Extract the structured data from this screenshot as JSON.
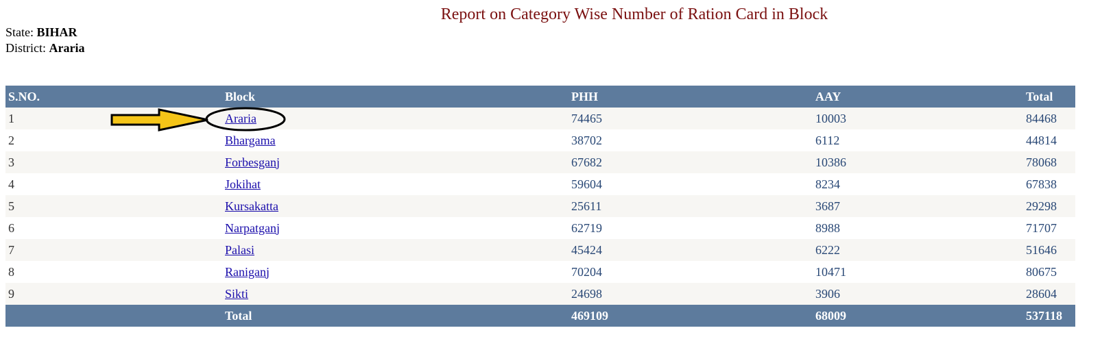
{
  "header": {
    "title": "Report on Category Wise Number of Ration Card in Block",
    "state_label": "State:",
    "state": "BIHAR",
    "district_label": "District:",
    "district": "Araria"
  },
  "table": {
    "columns": [
      "S.NO.",
      "Block",
      "PHH",
      "AAY",
      "Total"
    ],
    "rows": [
      [
        1,
        "Araria",
        74465,
        10003,
        84468
      ],
      [
        2,
        "Bhargama",
        38702,
        6112,
        44814
      ],
      [
        3,
        "Forbesganj",
        67682,
        10386,
        78068
      ],
      [
        4,
        "Jokihat",
        59604,
        8234,
        67838
      ],
      [
        5,
        "Kursakatta",
        25611,
        3687,
        29298
      ],
      [
        6,
        "Narpatganj",
        62719,
        8988,
        71707
      ],
      [
        7,
        "Palasi",
        45424,
        6222,
        51646
      ],
      [
        8,
        "Raniganj",
        70204,
        10471,
        80675
      ],
      [
        9,
        "Sikti",
        24698,
        3906,
        28604
      ]
    ],
    "total": [
      "Total",
      469109,
      68009,
      537118
    ]
  }
}
